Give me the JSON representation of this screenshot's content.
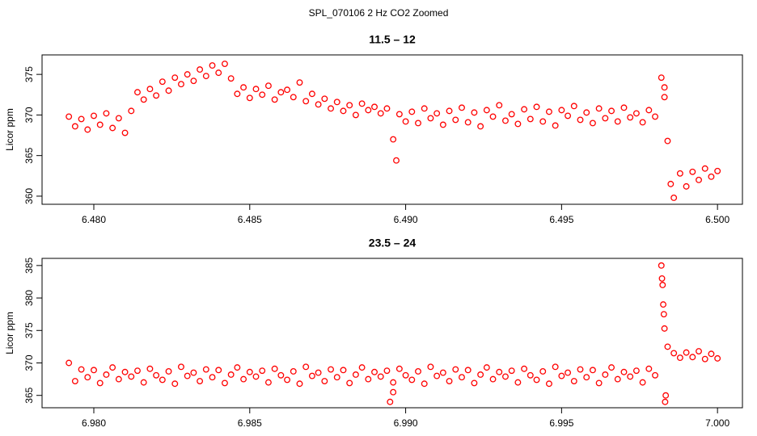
{
  "title": "SPL_070106  2 Hz CO2 Zoomed",
  "chart_data": [
    {
      "type": "scatter",
      "title": "11.5 – 12",
      "ylabel": "Licor ppm",
      "color": "#ff0000",
      "xlim": [
        6.47834,
        6.5008
      ],
      "ylim": [
        359.0,
        377.4
      ],
      "xticks": [
        {
          "value": 6.48,
          "label": "6.480"
        },
        6.485,
        {
          "value": 6.49,
          "label": "6.490"
        },
        6.495,
        {
          "value": 6.5,
          "label": "6.500"
        }
      ],
      "yticks": [
        360,
        365,
        370,
        375
      ],
      "x": [
        6.4792,
        6.4794,
        6.4796,
        6.4798,
        6.48,
        6.4802,
        6.4804,
        6.4806,
        6.4808,
        6.481,
        6.4812,
        6.4814,
        6.4816,
        6.4818,
        6.482,
        6.4822,
        6.4824,
        6.4826,
        6.4828,
        6.483,
        6.4832,
        6.4834,
        6.4836,
        6.4838,
        6.484,
        6.4842,
        6.4844,
        6.4846,
        6.4848,
        6.485,
        6.4852,
        6.4854,
        6.4856,
        6.4858,
        6.486,
        6.4862,
        6.4864,
        6.4866,
        6.4868,
        6.487,
        6.4872,
        6.4874,
        6.4876,
        6.4878,
        6.488,
        6.4882,
        6.4884,
        6.4886,
        6.4888,
        6.489,
        6.4892,
        6.4894,
        6.4896,
        6.4898,
        6.49,
        6.4902,
        6.4904,
        6.4906,
        6.4908,
        6.491,
        6.4912,
        6.4914,
        6.4916,
        6.4918,
        6.492,
        6.4922,
        6.4924,
        6.4926,
        6.4928,
        6.493,
        6.4932,
        6.4934,
        6.4936,
        6.4938,
        6.494,
        6.4942,
        6.4944,
        6.4946,
        6.4948,
        6.495,
        6.4952,
        6.4954,
        6.4956,
        6.4958,
        6.496,
        6.4962,
        6.4964,
        6.4966,
        6.4968,
        6.497,
        6.4972,
        6.4974,
        6.4976,
        6.4978,
        6.498,
        6.4897,
        6.4982,
        6.4983,
        6.4983,
        6.4984,
        6.4985,
        6.4986,
        6.4988,
        6.499,
        6.4992,
        6.4994,
        6.4996,
        6.4998,
        6.5
      ],
      "values": [
        369.8,
        368.6,
        369.5,
        368.2,
        369.9,
        368.8,
        370.2,
        368.4,
        369.6,
        367.8,
        370.5,
        372.8,
        371.9,
        373.2,
        372.4,
        374.1,
        373.0,
        374.6,
        373.8,
        375.0,
        374.2,
        375.6,
        374.8,
        376.1,
        375.2,
        376.3,
        374.5,
        372.6,
        373.4,
        372.1,
        373.2,
        372.5,
        373.6,
        371.9,
        372.8,
        373.1,
        372.2,
        374.0,
        371.7,
        372.6,
        371.3,
        372.0,
        370.8,
        371.6,
        370.5,
        371.2,
        370.0,
        371.4,
        370.6,
        371.0,
        370.2,
        370.8,
        367.0,
        370.1,
        369.2,
        370.4,
        369.0,
        370.8,
        369.6,
        370.2,
        368.8,
        370.5,
        369.4,
        370.9,
        369.1,
        370.3,
        368.6,
        370.6,
        369.8,
        371.2,
        369.3,
        370.1,
        368.9,
        370.7,
        369.5,
        371.0,
        369.2,
        370.4,
        368.7,
        370.6,
        369.9,
        371.1,
        369.4,
        370.3,
        369.0,
        370.8,
        369.6,
        370.5,
        369.2,
        370.9,
        369.7,
        370.2,
        369.1,
        370.6,
        369.8,
        364.4,
        374.6,
        373.4,
        372.2,
        366.8,
        361.5,
        359.8,
        362.8,
        361.2,
        363.0,
        362.0,
        363.4,
        362.4,
        363.1
      ]
    },
    {
      "type": "scatter",
      "title": "23.5 – 24",
      "ylabel": "Licor ppm",
      "color": "#ff0000",
      "xlim": [
        6.97834,
        7.0008
      ],
      "ylim": [
        363.1,
        386.1
      ],
      "xticks": [
        {
          "value": 6.98,
          "label": "6.980"
        },
        6.985,
        {
          "value": 6.99,
          "label": "6.990"
        },
        6.995,
        {
          "value": 7,
          "label": "7.000"
        }
      ],
      "yticks": [
        365,
        370,
        375,
        380,
        385
      ],
      "x": [
        6.9792,
        6.9794,
        6.9796,
        6.9798,
        6.98,
        6.9802,
        6.9804,
        6.9806,
        6.9808,
        6.981,
        6.9812,
        6.9814,
        6.9816,
        6.9818,
        6.982,
        6.9822,
        6.9824,
        6.9826,
        6.9828,
        6.983,
        6.9832,
        6.9834,
        6.9836,
        6.9838,
        6.984,
        6.9842,
        6.9844,
        6.9846,
        6.9848,
        6.985,
        6.9852,
        6.9854,
        6.9856,
        6.9858,
        6.986,
        6.9862,
        6.9864,
        6.9866,
        6.9868,
        6.987,
        6.9872,
        6.9874,
        6.9876,
        6.9878,
        6.988,
        6.9882,
        6.9884,
        6.9886,
        6.9888,
        6.989,
        6.9892,
        6.9894,
        6.9896,
        6.9898,
        6.99,
        6.9902,
        6.9904,
        6.9906,
        6.9908,
        6.991,
        6.9912,
        6.9914,
        6.9916,
        6.9918,
        6.992,
        6.9922,
        6.9924,
        6.9926,
        6.9928,
        6.993,
        6.9932,
        6.9934,
        6.9936,
        6.9938,
        6.994,
        6.9942,
        6.9944,
        6.9946,
        6.9948,
        6.995,
        6.9952,
        6.9954,
        6.9956,
        6.9958,
        6.996,
        6.9962,
        6.9964,
        6.9966,
        6.9968,
        6.997,
        6.9972,
        6.9974,
        6.9976,
        6.9978,
        6.998,
        6.9982,
        6.99822,
        6.99824,
        6.99826,
        6.99828,
        6.9983,
        6.99832,
        6.99834,
        6.9984,
        6.9986,
        6.9988,
        6.999,
        6.9992,
        6.9994,
        6.9996,
        6.9998,
        7,
        6.9895,
        6.9896
      ],
      "values": [
        370.0,
        367.2,
        369.0,
        367.8,
        368.9,
        366.9,
        368.2,
        369.3,
        367.5,
        368.6,
        367.9,
        368.8,
        367.0,
        369.1,
        368.1,
        367.4,
        368.7,
        366.8,
        369.4,
        368.0,
        368.5,
        367.2,
        369.0,
        367.8,
        368.9,
        366.9,
        368.2,
        369.3,
        367.5,
        368.6,
        367.9,
        368.8,
        367.0,
        369.1,
        368.1,
        367.4,
        368.7,
        366.8,
        369.4,
        368.0,
        368.5,
        367.2,
        369.0,
        367.8,
        368.9,
        366.9,
        368.2,
        369.3,
        367.5,
        368.6,
        367.9,
        368.8,
        367.0,
        369.1,
        368.1,
        367.4,
        368.7,
        366.8,
        369.4,
        368.0,
        368.5,
        367.2,
        369.0,
        367.8,
        368.9,
        366.9,
        368.2,
        369.3,
        367.5,
        368.6,
        367.9,
        368.8,
        367.0,
        369.1,
        368.1,
        367.4,
        368.7,
        366.8,
        369.4,
        368.0,
        368.5,
        367.2,
        369.0,
        367.8,
        368.9,
        366.9,
        368.2,
        369.3,
        367.5,
        368.6,
        367.9,
        368.8,
        367.0,
        369.1,
        368.1,
        385.0,
        383.0,
        382.0,
        379.0,
        377.5,
        375.3,
        364.0,
        365.0,
        372.5,
        371.5,
        370.8,
        371.6,
        370.9,
        371.8,
        370.6,
        371.4,
        370.7,
        364.0,
        365.5
      ]
    }
  ]
}
